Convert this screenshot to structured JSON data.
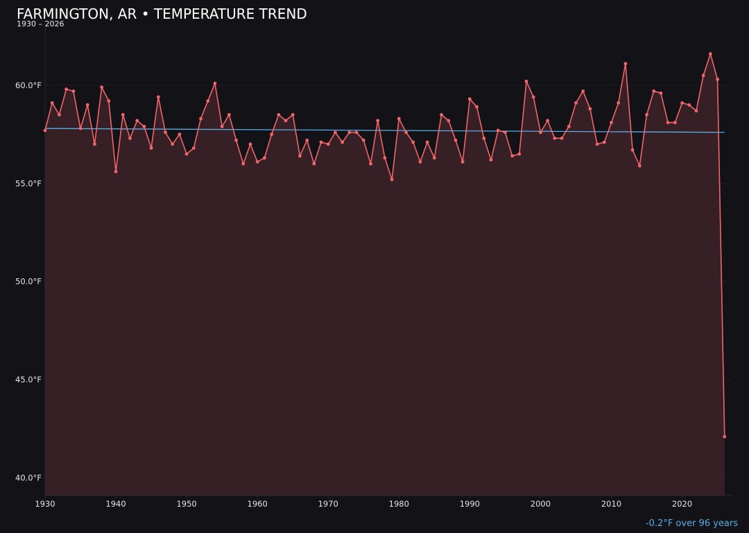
{
  "title": "FARMINGTON, AR • TEMPERATURE TREND",
  "subtitle": "1930 – 2026",
  "footer_note": "-0.2°F over 96 years",
  "colors": {
    "background": "#131217",
    "series": "#f0666a",
    "area_fill": "#371f26",
    "trend": "#5aaee6",
    "grid": "#221f27",
    "axis_line": "#2a2830",
    "tick_text": "#e6e6ea",
    "footer_note": "#5aaee6"
  },
  "chart_data": {
    "type": "line",
    "title": "FARMINGTON, AR • TEMPERATURE TREND",
    "subtitle": "1930 – 2026",
    "xlabel": "",
    "ylabel": "",
    "xlim": [
      1930,
      2027
    ],
    "ylim": [
      39.1,
      63.0
    ],
    "xticks": [
      1930,
      1940,
      1950,
      1960,
      1970,
      1980,
      1990,
      2000,
      2010,
      2020
    ],
    "xtick_labels": [
      "1930",
      "1940",
      "1950",
      "1960",
      "1970",
      "1980",
      "1990",
      "2000",
      "2010",
      "2020"
    ],
    "yticks": [
      40,
      45,
      50,
      55,
      60
    ],
    "ytick_labels": [
      "40.0°F",
      "45.0°F",
      "50.0°F",
      "55.0°F",
      "60.0°F"
    ],
    "grid": true,
    "x": [
      1930,
      1931,
      1932,
      1933,
      1934,
      1935,
      1936,
      1937,
      1938,
      1939,
      1940,
      1941,
      1942,
      1943,
      1944,
      1945,
      1946,
      1947,
      1948,
      1949,
      1950,
      1951,
      1952,
      1953,
      1954,
      1955,
      1956,
      1957,
      1958,
      1959,
      1960,
      1961,
      1962,
      1963,
      1964,
      1965,
      1966,
      1967,
      1968,
      1969,
      1970,
      1971,
      1972,
      1973,
      1974,
      1975,
      1976,
      1977,
      1978,
      1979,
      1980,
      1981,
      1982,
      1983,
      1984,
      1985,
      1986,
      1987,
      1988,
      1989,
      1990,
      1991,
      1992,
      1993,
      1994,
      1995,
      1996,
      1997,
      1998,
      1999,
      2000,
      2001,
      2002,
      2003,
      2004,
      2005,
      2006,
      2007,
      2008,
      2009,
      2010,
      2011,
      2012,
      2013,
      2014,
      2015,
      2016,
      2017,
      2018,
      2019,
      2020,
      2021,
      2022,
      2023,
      2024,
      2025,
      2026
    ],
    "series": [
      {
        "values": [
          57.7,
          59.1,
          58.5,
          59.8,
          59.7,
          57.8,
          59.0,
          57.0,
          59.9,
          59.2,
          55.6,
          58.5,
          57.3,
          58.2,
          57.9,
          56.8,
          59.4,
          57.6,
          57.0,
          57.5,
          56.5,
          56.8,
          58.3,
          59.2,
          60.1,
          57.9,
          58.5,
          57.2,
          56.0,
          57.0,
          56.1,
          56.3,
          57.5,
          58.5,
          58.2,
          58.5,
          56.4,
          57.2,
          56.0,
          57.1,
          57.0,
          57.6,
          57.1,
          57.6,
          57.6,
          57.2,
          56.0,
          58.2,
          56.3,
          55.2,
          58.3,
          57.6,
          57.1,
          56.1,
          57.1,
          56.3,
          58.5,
          58.2,
          57.2,
          56.1,
          59.3,
          58.9,
          57.3,
          56.2,
          57.7,
          57.6,
          56.4,
          56.5,
          60.2,
          59.4,
          57.6,
          58.2,
          57.3,
          57.3,
          57.9,
          59.1,
          59.7,
          58.8,
          57.0,
          57.1,
          58.1,
          59.1,
          61.1,
          56.7,
          55.9,
          58.5,
          59.7,
          59.6,
          58.1,
          58.1,
          59.1,
          59.0,
          58.7,
          60.5,
          61.6,
          60.3,
          42.1
        ]
      }
    ],
    "trend_line": {
      "x": [
        1930,
        2026
      ],
      "y": [
        57.8,
        57.6
      ],
      "label": "-0.2°F over 96 years"
    }
  }
}
